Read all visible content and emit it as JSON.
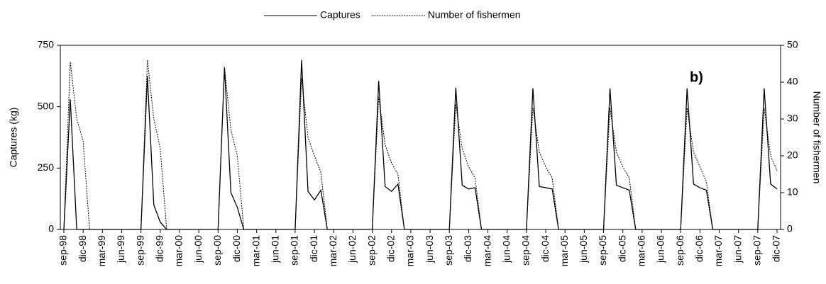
{
  "chart_data": {
    "type": "line",
    "legend": "top",
    "annotation": "b)",
    "ylabel": "Captures (kg)",
    "y2label": "Number of fishermen",
    "ylim": [
      0,
      750
    ],
    "yticks": [
      0,
      250,
      500,
      750
    ],
    "y2lim": [
      0,
      50
    ],
    "y2ticks": [
      0,
      10,
      20,
      30,
      40,
      50
    ],
    "categories": [
      "sep-98",
      null,
      null,
      "dic-98",
      null,
      null,
      "mar-99",
      null,
      null,
      "jun-99",
      null,
      null,
      "sep-99",
      null,
      null,
      "dic-99",
      null,
      null,
      "mar-00",
      null,
      null,
      "jun-00",
      null,
      null,
      "sep-00",
      null,
      null,
      "dic-00",
      null,
      null,
      "mar-01",
      null,
      null,
      "jun-01",
      null,
      null,
      "sep-01",
      null,
      null,
      "dic-01",
      null,
      null,
      "mar-02",
      null,
      null,
      "jun-02",
      null,
      null,
      "sep-02",
      null,
      null,
      "dic-02",
      null,
      null,
      "mar-03",
      null,
      null,
      "jun-03",
      null,
      null,
      "sep-03",
      null,
      null,
      "dic-03",
      null,
      null,
      "mar-04",
      null,
      null,
      "jun-04",
      null,
      null,
      "sep-04",
      null,
      null,
      "dic-04",
      null,
      null,
      "mar-05",
      null,
      null,
      "jun-05",
      null,
      null,
      "sep-05",
      null,
      null,
      "dic-05",
      null,
      null,
      "mar-06",
      null,
      null,
      "jun-06",
      null,
      null,
      "sep-06",
      null,
      null,
      "dic-06",
      null,
      null,
      "mar-07",
      null,
      null,
      "jun-07",
      null,
      null,
      "sep-07",
      null,
      null,
      "dic-07"
    ],
    "series": [
      {
        "name": "Captures",
        "color": "#000000",
        "line_style": "solid",
        "axis": "y",
        "values": [
          0,
          530,
          0,
          0,
          0,
          0,
          0,
          0,
          0,
          0,
          0,
          0,
          0,
          625,
          100,
          30,
          0,
          0,
          0,
          0,
          0,
          0,
          0,
          0,
          0,
          660,
          150,
          90,
          0,
          0,
          0,
          0,
          0,
          0,
          0,
          0,
          0,
          690,
          155,
          120,
          160,
          0,
          0,
          0,
          0,
          0,
          0,
          0,
          0,
          605,
          175,
          155,
          185,
          0,
          0,
          0,
          0,
          0,
          0,
          0,
          0,
          578,
          180,
          165,
          170,
          0,
          0,
          0,
          0,
          0,
          0,
          0,
          0,
          575,
          175,
          170,
          165,
          0,
          0,
          0,
          0,
          0,
          0,
          0,
          0,
          575,
          180,
          170,
          160,
          0,
          0,
          0,
          0,
          0,
          0,
          0,
          0,
          575,
          185,
          170,
          160,
          0,
          0,
          0,
          0,
          0,
          0,
          0,
          0,
          575,
          185,
          165
        ]
      },
      {
        "name": "Number of fishermen",
        "color": "#000000",
        "line_style": "dotted",
        "axis": "y2",
        "values": [
          0,
          45.5,
          30,
          24,
          0,
          0,
          0,
          0,
          0,
          0,
          0,
          0,
          0,
          46,
          30,
          22,
          0,
          0,
          0,
          0,
          0,
          0,
          0,
          0,
          0,
          44,
          27,
          20,
          0,
          0,
          0,
          0,
          0,
          0,
          0,
          0,
          0,
          41,
          25,
          20,
          15.5,
          0,
          0,
          0,
          0,
          0,
          0,
          0,
          0,
          36,
          23,
          18,
          15,
          0,
          0,
          0,
          0,
          0,
          0,
          0,
          0,
          34,
          22,
          17,
          14,
          0,
          0,
          0,
          0,
          0,
          0,
          0,
          0,
          33,
          21,
          17,
          14,
          0,
          0,
          0,
          0,
          0,
          0,
          0,
          0,
          33,
          21,
          17,
          14,
          0,
          0,
          0,
          0,
          0,
          0,
          0,
          0,
          33,
          21,
          17,
          13,
          0,
          0,
          0,
          0,
          0,
          0,
          0,
          0,
          33,
          20,
          16
        ]
      }
    ]
  }
}
